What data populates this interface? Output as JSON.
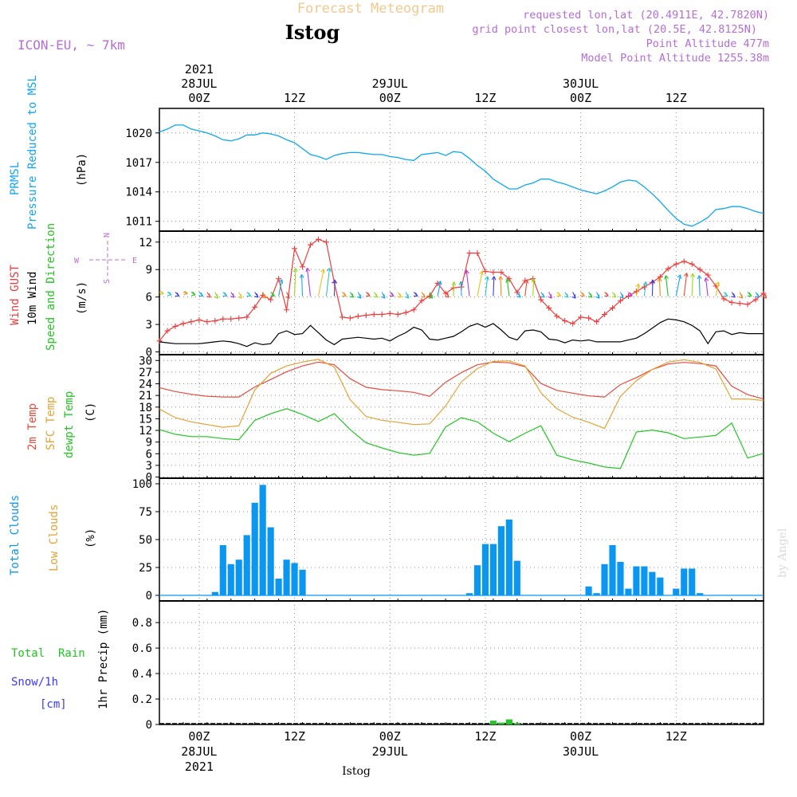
{
  "header": {
    "top_title": "Forecast Meteogram",
    "location": "Istog",
    "model": "ICON-EU, ~ 7km",
    "requested": "requested lon,lat (20.4911E, 42.7820N)",
    "grid_point": "grid point closest lon,lat (20.5E, 42.8125N)",
    "point_alt": "Point Altitude 477m",
    "model_alt": "Model Point Altitude 1255.38m",
    "footer_location": "Istog",
    "credit": "by Angel"
  },
  "time_axis": {
    "top": {
      "labels": [
        "00Z",
        "12Z",
        "00Z",
        "12Z",
        "00Z",
        "12Z"
      ],
      "dates": [
        {
          "day": "28JUL",
          "year": "2021",
          "at": "00Z"
        },
        {
          "day": "29JUL",
          "at": "00Z"
        },
        {
          "day": "30JUL",
          "at": "00Z"
        }
      ]
    },
    "bottom": {
      "labels": [
        "00Z",
        "12Z",
        "00Z",
        "12Z",
        "00Z",
        "12Z"
      ],
      "dates": [
        {
          "day": "28JUL",
          "year": "2021"
        },
        {
          "day": "29JUL"
        },
        {
          "day": "30JUL"
        }
      ]
    },
    "range_hours": [
      -5,
      71
    ],
    "tick_hours": [
      0,
      12,
      24,
      36,
      48,
      60
    ]
  },
  "colors": {
    "pressure": "#0da6f5",
    "gust": "#f03c3c",
    "wind": "#000000",
    "dir_label": "#22c522",
    "t2m": "#e84a3c",
    "tsfc": "#e3a336",
    "dewpt": "#22c522",
    "total_clouds": "#0b97f0",
    "low_clouds": "#e3a336",
    "rain": "#22c522",
    "snow": "#3a3af5",
    "header_purple": "#b46ed6",
    "top_title": "#f1c98e"
  },
  "panels": {
    "pressure": {
      "label1": "PRMSL",
      "label2": "Pressure Reduced to MSL",
      "unit": "(hPa)"
    },
    "wind": {
      "label1": "Wind GUST",
      "label2": "10m Wind",
      "label3": "Speed and Direction",
      "unit": "(m/s)",
      "compass": {
        "n": "N",
        "s": "S",
        "e": "E",
        "w": "W"
      }
    },
    "temp": {
      "label1": "2m Temp",
      "label2": "SFC Temp",
      "label3": "dewpt Temp",
      "unit": "(C)"
    },
    "clouds": {
      "label1": "Total Clouds",
      "label2": "Low Clouds",
      "unit": "(%)"
    },
    "precip": {
      "label1": "Total  Rain",
      "label2": "Snow/1h",
      "label3": "[cm]",
      "axis_label": "1hr Precip (mm)"
    }
  },
  "chart_data": [
    {
      "type": "line",
      "panel": "pressure",
      "ylim": [
        1010,
        1022.5
      ],
      "yticks": [
        1011,
        1014,
        1017,
        1020
      ],
      "series": [
        {
          "name": "PRMSL",
          "x": [
            -5,
            -4,
            -3,
            -2,
            -1,
            0,
            1,
            2,
            3,
            4,
            5,
            6,
            7,
            8,
            9,
            10,
            11,
            12,
            13,
            14,
            15,
            16,
            17,
            18,
            19,
            20,
            21,
            22,
            23,
            24,
            25,
            26,
            27,
            28,
            29,
            30,
            31,
            32,
            33,
            34,
            35,
            36,
            37,
            38,
            39,
            40,
            41,
            42,
            43,
            44,
            45,
            46,
            47,
            48,
            49,
            50,
            51,
            52,
            53,
            54,
            55,
            56,
            57,
            58,
            59,
            60,
            61,
            62,
            63,
            64,
            65,
            66,
            67,
            68,
            69,
            70,
            71
          ],
          "values": [
            1020.1,
            1020.4,
            1020.8,
            1020.8,
            1020.4,
            1020.2,
            1020.0,
            1019.7,
            1019.3,
            1019.2,
            1019.4,
            1019.8,
            1019.8,
            1020.0,
            1019.9,
            1019.7,
            1019.3,
            1019.0,
            1018.4,
            1017.8,
            1017.6,
            1017.3,
            1017.7,
            1017.9,
            1018.0,
            1018.0,
            1017.9,
            1017.8,
            1017.8,
            1017.6,
            1017.5,
            1017.3,
            1017.2,
            1017.8,
            1017.9,
            1018.0,
            1017.7,
            1018.1,
            1018.0,
            1017.4,
            1016.7,
            1016.1,
            1015.3,
            1014.8,
            1014.3,
            1014.3,
            1014.7,
            1014.9,
            1015.3,
            1015.3,
            1015.0,
            1014.8,
            1014.5,
            1014.2,
            1014.0,
            1013.8,
            1014.1,
            1014.5,
            1015.0,
            1015.2,
            1015.1,
            1014.5,
            1013.8,
            1013.0,
            1012.1,
            1011.3,
            1010.7,
            1010.5,
            1010.9,
            1011.4,
            1012.2,
            1012.3,
            1012.5,
            1012.5,
            1012.3,
            1012.0,
            1011.8
          ]
        }
      ]
    },
    {
      "type": "line",
      "panel": "wind",
      "ylim": [
        -0.3,
        13.2
      ],
      "yticks": [
        0,
        3,
        6,
        9,
        12
      ],
      "series": [
        {
          "name": "Wind GUST",
          "x": [
            -5,
            -4,
            -3,
            -2,
            -1,
            0,
            1,
            2,
            3,
            4,
            5,
            6,
            7,
            8,
            9,
            10,
            11,
            12,
            13,
            14,
            15,
            16,
            17,
            18,
            19,
            20,
            21,
            22,
            23,
            24,
            25,
            26,
            27,
            28,
            29,
            30,
            31,
            32,
            33,
            34,
            35,
            36,
            37,
            38,
            39,
            40,
            41,
            42,
            43,
            44,
            45,
            46,
            47,
            48,
            49,
            50,
            51,
            52,
            53,
            54,
            55,
            56,
            57,
            58,
            59,
            60,
            61,
            62,
            63,
            64,
            65,
            66,
            67,
            68,
            69,
            70,
            71
          ],
          "values": [
            1.2,
            2.3,
            2.8,
            3.1,
            3.3,
            3.5,
            3.3,
            3.4,
            3.6,
            3.6,
            3.7,
            3.8,
            4.9,
            6.2,
            5.7,
            8.0,
            4.6,
            11.3,
            9.3,
            11.7,
            12.3,
            12.0,
            7.6,
            3.8,
            3.7,
            3.9,
            4.0,
            4.1,
            4.1,
            4.2,
            4.1,
            4.3,
            4.6,
            5.6,
            6.1,
            7.5,
            6.4,
            7.0,
            7.1,
            10.8,
            10.8,
            8.8,
            8.7,
            8.7,
            8.0,
            6.5,
            7.8,
            8.0,
            5.7,
            4.8,
            3.9,
            3.4,
            3.1,
            3.8,
            3.7,
            3.3,
            4.1,
            4.8,
            5.6,
            6.1,
            6.6,
            7.1,
            7.6,
            8.2,
            9.1,
            9.6,
            9.9,
            9.6,
            9.0,
            8.4,
            7.2,
            5.8,
            5.4,
            5.3,
            5.2,
            5.7,
            6.4
          ]
        },
        {
          "name": "10m Wind",
          "x": [
            -5,
            -4,
            -3,
            -2,
            -1,
            0,
            1,
            2,
            3,
            4,
            5,
            6,
            7,
            8,
            9,
            10,
            11,
            12,
            13,
            14,
            15,
            16,
            17,
            18,
            19,
            20,
            21,
            22,
            23,
            24,
            25,
            26,
            27,
            28,
            29,
            30,
            31,
            32,
            33,
            34,
            35,
            36,
            37,
            38,
            39,
            40,
            41,
            42,
            43,
            44,
            45,
            46,
            47,
            48,
            49,
            50,
            51,
            52,
            53,
            54,
            55,
            56,
            57,
            58,
            59,
            60,
            61,
            62,
            63,
            64,
            65,
            66,
            67,
            68,
            69,
            70,
            71
          ],
          "values": [
            1.1,
            1.0,
            0.9,
            0.9,
            0.9,
            0.9,
            1.0,
            1.1,
            1.2,
            1.1,
            0.9,
            0.6,
            1.0,
            0.8,
            0.9,
            2.0,
            2.3,
            1.9,
            2.0,
            2.9,
            2.1,
            1.3,
            0.8,
            1.4,
            1.5,
            1.6,
            1.5,
            1.4,
            1.5,
            1.2,
            1.7,
            2.1,
            2.7,
            2.4,
            1.4,
            1.3,
            1.5,
            1.7,
            2.2,
            2.8,
            3.1,
            2.7,
            3.1,
            2.4,
            1.6,
            1.3,
            2.3,
            2.4,
            2.2,
            1.4,
            1.3,
            1.0,
            1.3,
            1.2,
            1.3,
            1.1,
            1.1,
            1.1,
            1.1,
            1.3,
            1.5,
            2.0,
            2.6,
            3.2,
            3.6,
            3.5,
            3.3,
            2.9,
            2.3,
            0.9,
            2.2,
            2.3,
            1.9,
            2.1,
            2.0,
            2.0,
            2.0
          ]
        }
      ]
    },
    {
      "type": "line",
      "panel": "temp",
      "ylim": [
        -0.3,
        31.5
      ],
      "yticks": [
        0,
        3,
        6,
        9,
        12,
        15,
        18,
        21,
        24,
        27,
        30
      ],
      "series": [
        {
          "name": "2m Temp",
          "x": [
            -5,
            -3,
            -1,
            1,
            3,
            5,
            7,
            9,
            11,
            13,
            15,
            17,
            19,
            21,
            23,
            25,
            27,
            29,
            31,
            33,
            35,
            37,
            39,
            41,
            43,
            45,
            47,
            49,
            51,
            53,
            55,
            57,
            59,
            61,
            63,
            65,
            67,
            69,
            71
          ],
          "values": [
            23,
            22,
            21.3,
            20.8,
            20.6,
            20.6,
            23.2,
            25.1,
            27.1,
            28.6,
            29.6,
            28.9,
            25.3,
            23.1,
            22.5,
            22.2,
            21.8,
            20.8,
            24.4,
            26.9,
            28.9,
            29.6,
            29.4,
            28.4,
            24.1,
            22.3,
            21.6,
            20.9,
            20.6,
            23.8,
            25.6,
            27.7,
            29.1,
            29.5,
            29.2,
            28.6,
            23.4,
            21.2,
            20.1
          ]
        },
        {
          "name": "SFC Temp",
          "x": [
            -5,
            -3,
            -1,
            1,
            3,
            5,
            7,
            9,
            11,
            13,
            15,
            17,
            19,
            21,
            23,
            25,
            27,
            29,
            31,
            33,
            35,
            37,
            39,
            41,
            43,
            45,
            47,
            49,
            51,
            53,
            55,
            57,
            59,
            61,
            63,
            65,
            67,
            69,
            71
          ],
          "values": [
            17.5,
            15.3,
            14.2,
            13.5,
            12.8,
            13.2,
            22.4,
            26.7,
            28.6,
            29.6,
            30.3,
            28.3,
            19.9,
            15.6,
            14.6,
            14.1,
            13.5,
            13.7,
            18.3,
            24.5,
            27.9,
            29.8,
            29.9,
            28.6,
            21.7,
            17.6,
            15.4,
            14.1,
            12.5,
            20.8,
            24.8,
            27.7,
            29.6,
            30.2,
            29.5,
            27.8,
            20.1,
            20.1,
            19.7
          ]
        },
        {
          "name": "dewpt Temp",
          "x": [
            -5,
            -3,
            -1,
            1,
            3,
            5,
            7,
            9,
            11,
            13,
            15,
            17,
            19,
            21,
            23,
            25,
            27,
            29,
            31,
            33,
            35,
            37,
            39,
            41,
            43,
            45,
            47,
            49,
            51,
            53,
            55,
            57,
            59,
            61,
            63,
            65,
            67,
            69,
            71
          ],
          "values": [
            12.2,
            11.0,
            10.4,
            10.4,
            9.9,
            9.6,
            14.6,
            16.3,
            17.6,
            16.1,
            14.3,
            16.3,
            12.2,
            8.8,
            7.5,
            6.3,
            5.6,
            6.1,
            12.9,
            15.3,
            14.2,
            11.3,
            9.1,
            11.3,
            13.2,
            5.6,
            4.4,
            3.6,
            2.6,
            2.2,
            11.6,
            12.1,
            11.4,
            9.9,
            10.3,
            10.7,
            13.9,
            4.9,
            6.1
          ]
        }
      ]
    },
    {
      "type": "bar",
      "panel": "clouds",
      "ylim": [
        -5,
        105
      ],
      "yticks": [
        0,
        25,
        50,
        75,
        100
      ],
      "series": [
        {
          "name": "Total Clouds",
          "x": [
            2,
            3,
            4,
            5,
            6,
            7,
            8,
            9,
            10,
            11,
            12,
            13,
            14,
            15,
            16,
            17,
            18,
            34,
            35,
            36,
            37,
            38,
            39,
            40,
            41,
            42,
            46,
            47,
            48,
            49,
            50,
            51,
            52,
            53,
            54,
            55,
            56,
            57,
            58,
            60,
            61,
            62,
            63
          ],
          "values": [
            3,
            45,
            28,
            32,
            54,
            83,
            99,
            61,
            15,
            32,
            29,
            23,
            0,
            0,
            0,
            0,
            0,
            2,
            27,
            46,
            46,
            62,
            68,
            31,
            0,
            0,
            0,
            0,
            0,
            8,
            2,
            28,
            45,
            30,
            6,
            26,
            26,
            21,
            16,
            6,
            24,
            24,
            2
          ]
        },
        {
          "name": "Low Clouds",
          "x": [],
          "values": []
        }
      ]
    },
    {
      "type": "bar",
      "panel": "precip",
      "ylim": [
        0,
        0.97
      ],
      "yticks": [
        0,
        0.2,
        0.4,
        0.6,
        0.8
      ],
      "series": [
        {
          "name": "Total Rain",
          "x": [
            37,
            38,
            39,
            40
          ],
          "values": [
            0.03,
            0.015,
            0.04,
            0.01
          ]
        },
        {
          "name": "Snow/1h",
          "x": [],
          "values": []
        }
      ]
    }
  ]
}
